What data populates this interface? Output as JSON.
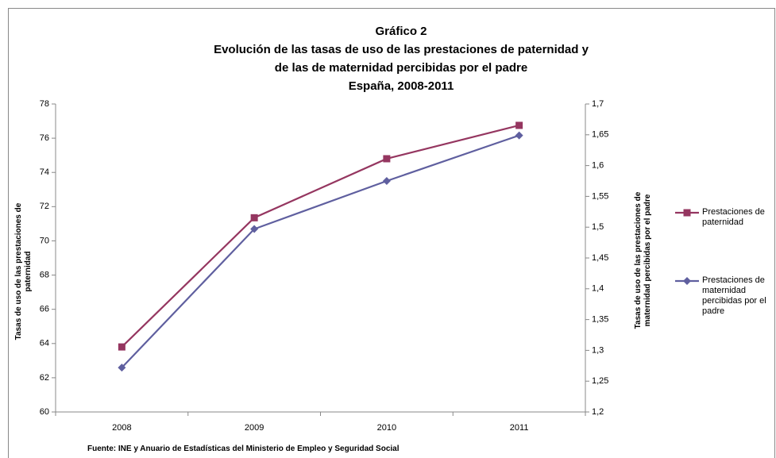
{
  "chart_data": {
    "type": "line",
    "title": [
      "Gráfico 2",
      "Evolución de las tasas de uso de las prestaciones de paternidad y",
      "de las de maternidad percibidas por el padre",
      "España, 2008-2011"
    ],
    "categories": [
      "2008",
      "2009",
      "2010",
      "2011"
    ],
    "series": [
      {
        "name": "Prestaciones de paternidad",
        "color": "#953660",
        "marker": "square",
        "axis": "y",
        "values": [
          63.8,
          71.35,
          74.8,
          76.75
        ]
      },
      {
        "name": "Prestaciones de maternidad percibidas por el padre",
        "color": "#5f5f9f",
        "marker": "diamond",
        "axis": "y2",
        "values": [
          1.272,
          1.497,
          1.575,
          1.649
        ]
      }
    ],
    "ylim": [
      60,
      78
    ],
    "yticks": [
      60,
      62,
      64,
      66,
      68,
      70,
      72,
      74,
      76,
      78
    ],
    "y2lim": [
      1.2,
      1.7
    ],
    "y2ticks": [
      {
        "value": 1.2,
        "label": "1,2"
      },
      {
        "value": 1.25,
        "label": "1,25"
      },
      {
        "value": 1.3,
        "label": "1,3"
      },
      {
        "value": 1.35,
        "label": "1,35"
      },
      {
        "value": 1.4,
        "label": "1,4"
      },
      {
        "value": 1.45,
        "label": "1,45"
      },
      {
        "value": 1.5,
        "label": "1,5"
      },
      {
        "value": 1.55,
        "label": "1,55"
      },
      {
        "value": 1.6,
        "label": "1,6"
      },
      {
        "value": 1.65,
        "label": "1,65"
      },
      {
        "value": 1.7,
        "label": "1,7"
      }
    ],
    "ylabel": "Tasas de uso de las prestaciones de paternidad",
    "y2label": "Tasas de uso de las prestaciones de maternidad percibidas por el padre",
    "source": "Fuente: INE y Anuario de Estadísticas del Ministerio de Empleo y Seguridad Social",
    "grid": false,
    "legend": "right"
  }
}
